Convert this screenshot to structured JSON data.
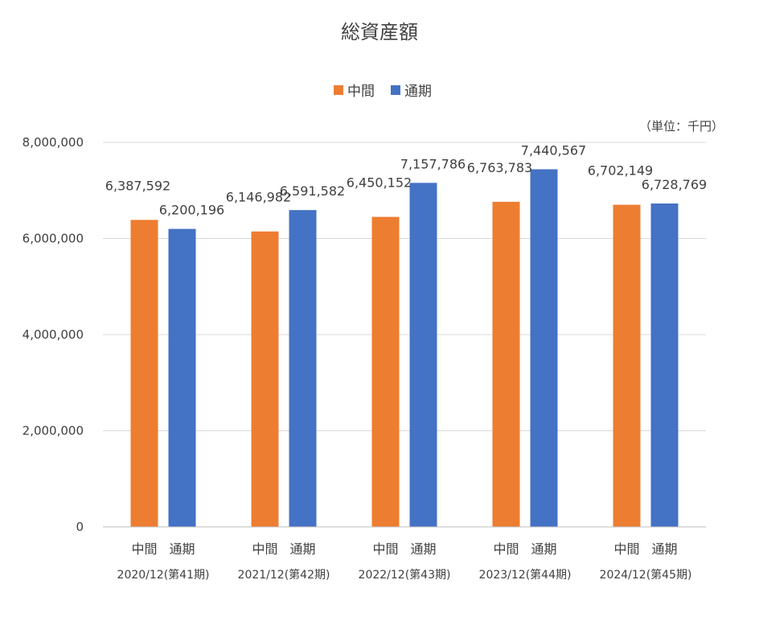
{
  "chart_data": {
    "type": "bar",
    "title": "総資産額",
    "unit_note": "（単位：千円）",
    "categories": [
      "2020/12(第41期)",
      "2021/12(第42期)",
      "2022/12(第43期)",
      "2023/12(第44期)",
      "2024/12(第45期)"
    ],
    "sub_labels": [
      "中間",
      "通期"
    ],
    "series": [
      {
        "name": "中間",
        "color": "#ED7D31",
        "values": [
          6387592,
          6146982,
          6450152,
          6763783,
          6702149
        ],
        "value_labels": [
          "6,387,592",
          "6,146,982",
          "6,450,152",
          "6,763,783",
          "6,702,149"
        ]
      },
      {
        "name": "通期",
        "color": "#4472C4",
        "values": [
          6200196,
          6591582,
          7157786,
          7440567,
          6728769
        ],
        "value_labels": [
          "6,200,196",
          "6,591,582",
          "7,157,786",
          "7,440,567",
          "6,728,769"
        ]
      }
    ],
    "ylim": [
      0,
      8000000
    ],
    "yticks": [
      0,
      2000000,
      4000000,
      6000000,
      8000000
    ],
    "ytick_labels": [
      "0",
      "2,000,000",
      "4,000,000",
      "6,000,000",
      "8,000,000"
    ],
    "grid": true,
    "legend_position": "top"
  }
}
